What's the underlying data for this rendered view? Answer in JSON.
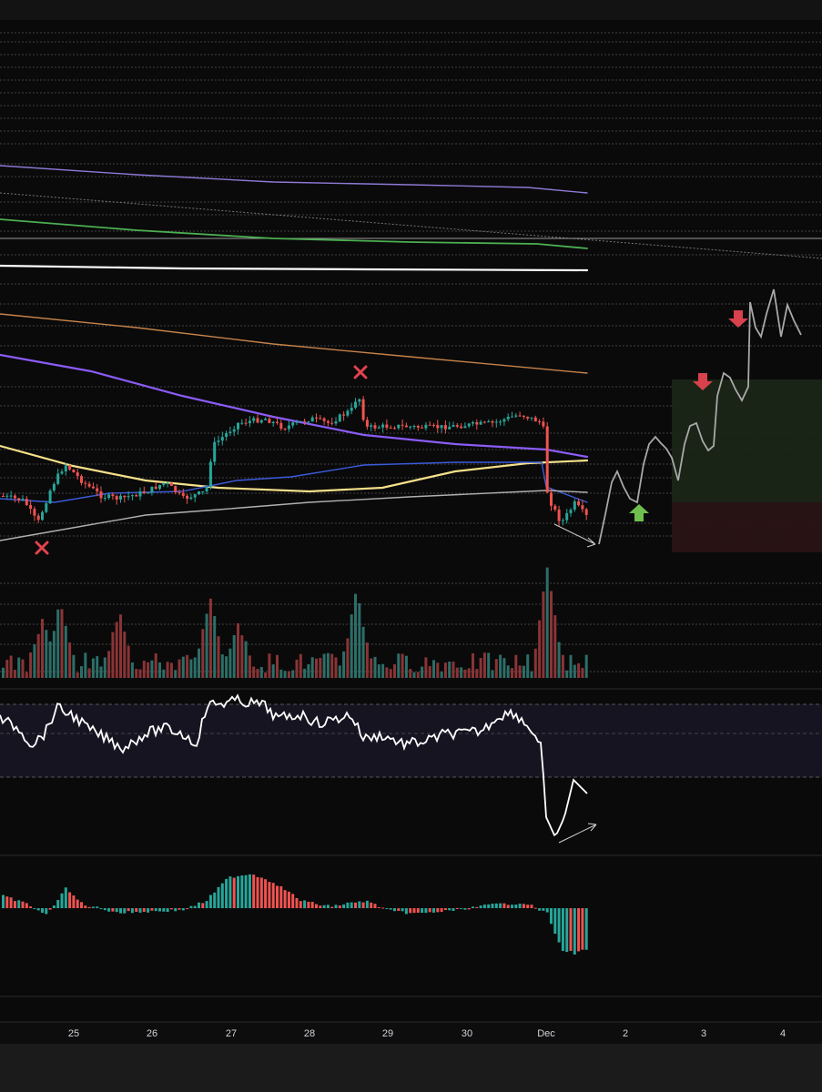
{
  "chart_data": {
    "type": "candlestick",
    "x_axis": {
      "ticks": [
        "25",
        "26",
        "27",
        "28",
        "29",
        "30",
        "Dec",
        "2",
        "3",
        "4"
      ]
    },
    "panes": [
      {
        "name": "price",
        "kind": "candlestick"
      },
      {
        "name": "volume",
        "kind": "bar"
      },
      {
        "name": "oscillator",
        "kind": "line"
      },
      {
        "name": "momentum",
        "kind": "histogram"
      }
    ],
    "annotations": {
      "x_marks": 2,
      "down_arrows": 2,
      "up_arrows": 1,
      "projection": "hand-drawn zigzag path rising toward upper range",
      "zones": [
        "green target zone",
        "red risk zone"
      ],
      "divergence_arrows": 2
    },
    "colors": {
      "background": "#0a0a0a",
      "up": "#26a69a",
      "down": "#ef5350",
      "ma_purple": "#8e79d6",
      "ma_green": "#4caf50",
      "ma_white": "#ffffff",
      "ma_orange": "#c8834a",
      "ma_violet": "#8b5cf6",
      "ma_yellow": "#f5e08a",
      "ma_blue": "#3b5bdb",
      "ma_grey": "#b0b0b0",
      "rsi_band": "#191526",
      "arrow_red": "#e0434f",
      "arrow_green": "#6fbf4f",
      "zone_green": "#1d2a1a",
      "zone_red": "#2a1414"
    }
  }
}
